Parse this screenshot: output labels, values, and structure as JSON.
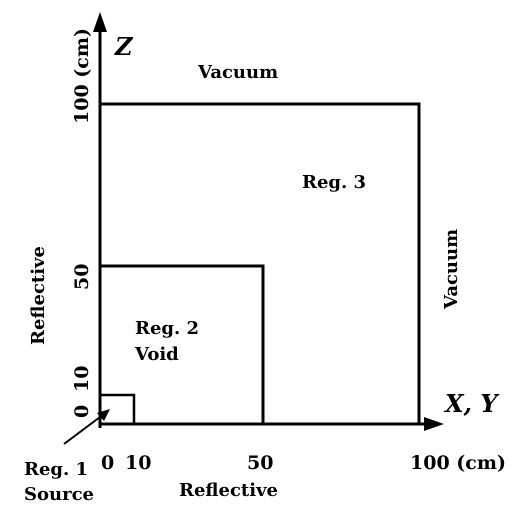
{
  "axes": {
    "vertical_label": "Z",
    "horizontal_label": "X, Y",
    "z_unit_label": "100 (cm)",
    "z_tick_50": "50",
    "z_tick_10": "10",
    "z_tick_0": "0",
    "x_tick_0": "0",
    "x_tick_10": "10",
    "x_tick_50": "50",
    "x_tick_100": "100 (cm)"
  },
  "boundaries": {
    "top": "Vacuum",
    "right": "Vacuum",
    "left": "Reflective",
    "bottom": "Reflective"
  },
  "regions": {
    "region3_label": "Reg. 3",
    "region2_label": "Reg. 2",
    "region2_material": "Void",
    "region1_label": "Reg. 1",
    "region1_material": "Source"
  },
  "colors": {
    "ink": "#000000",
    "background": "#ffffff"
  }
}
